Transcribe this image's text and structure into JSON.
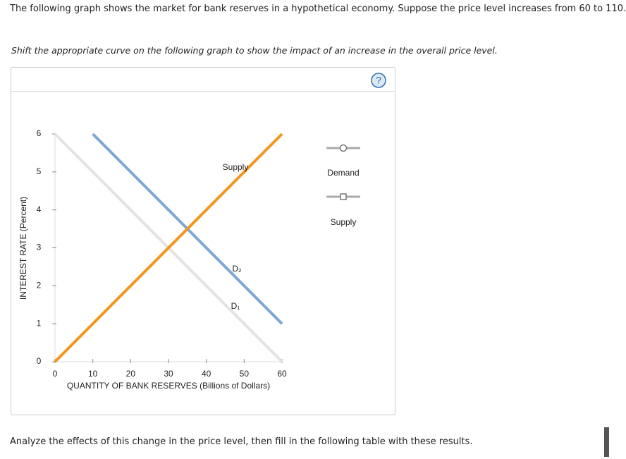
{
  "prompt": "The following graph shows the market for bank reserves in a hypothetical economy. Suppose the price level increases from 60 to 110.",
  "instruction": "Shift the appropriate curve on the following graph to show the impact of an increase in the overall price level.",
  "help_icon": "?",
  "tools": [
    "Demand",
    "Supply"
  ],
  "footer": "Analyze the effects of this change in the price level, then fill in the following table with these results.",
  "chart_data": {
    "type": "line",
    "x_label": "QUANTITY OF BANK RESERVES (Billions of Dollars)",
    "y_label": "INTEREST RATE (Percent)",
    "xlim": [
      0,
      60
    ],
    "ylim": [
      0,
      6
    ],
    "xticks": [
      0,
      10,
      20,
      30,
      40,
      50,
      60
    ],
    "yticks": [
      0,
      1,
      2,
      3,
      4,
      5,
      6
    ],
    "series": [
      {
        "name": "D₁",
        "color": "#e3e3e3",
        "x": [
          0,
          60
        ],
        "values": [
          6,
          0
        ]
      },
      {
        "name": "D₂",
        "color": "#7fa7d6",
        "x": [
          10,
          60
        ],
        "values": [
          6,
          1
        ]
      },
      {
        "name": "Supply",
        "color": "#f3961c",
        "x": [
          0,
          60
        ],
        "values": [
          0,
          6
        ]
      }
    ]
  }
}
